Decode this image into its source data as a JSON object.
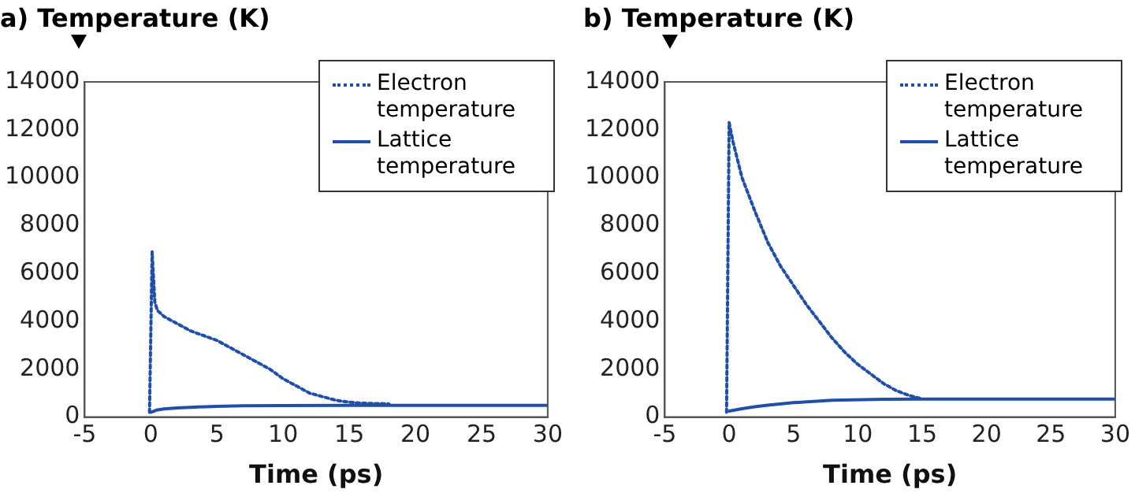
{
  "chart_data": [
    {
      "type": "line",
      "ylabel": "a) Temperature (K)",
      "xlabel": "Time (ps)",
      "xlim": [
        -5,
        30
      ],
      "xticks": [
        -5,
        0,
        5,
        10,
        15,
        20,
        25,
        30
      ],
      "ylim": [
        0,
        14000
      ],
      "yticks": [
        0,
        2000,
        4000,
        6000,
        8000,
        10000,
        12000,
        14000
      ],
      "grid": false,
      "legend": "top right",
      "marker": "none",
      "series": [
        {
          "name": "Electron temperature",
          "color": "#1f4fa8",
          "line_style": "dotted",
          "x": [
            -0.1,
            0.1,
            0.3,
            0.5,
            1,
            2,
            3,
            4,
            5,
            6,
            7,
            8,
            9,
            10,
            11,
            12,
            13,
            14,
            15,
            16,
            18
          ],
          "values": [
            200,
            6900,
            4800,
            4450,
            4200,
            3900,
            3600,
            3400,
            3200,
            2900,
            2600,
            2300,
            2000,
            1600,
            1300,
            1000,
            850,
            700,
            620,
            580,
            550
          ]
        },
        {
          "name": "Lattice temperature",
          "color": "#1f4fa8",
          "line_style": "solid",
          "x": [
            0,
            0.5,
            1,
            2,
            3,
            5,
            7,
            10,
            15,
            20,
            25,
            30
          ],
          "values": [
            200,
            300,
            340,
            380,
            410,
            450,
            470,
            480,
            490,
            490,
            490,
            490
          ]
        }
      ]
    },
    {
      "type": "line",
      "ylabel": "b) Temperature (K)",
      "xlabel": "Time (ps)",
      "xlim": [
        -5,
        30
      ],
      "xticks": [
        -5,
        0,
        5,
        10,
        15,
        20,
        25,
        30
      ],
      "ylim": [
        0,
        14000
      ],
      "yticks": [
        0,
        2000,
        4000,
        6000,
        8000,
        10000,
        12000,
        14000
      ],
      "grid": false,
      "legend": "top right",
      "marker": "none",
      "series": [
        {
          "name": "Electron temperature",
          "color": "#1f4fa8",
          "line_style": "dotted",
          "x": [
            -0.2,
            0,
            0.3,
            1,
            2,
            3,
            4,
            5,
            6,
            7,
            8,
            9,
            10,
            11,
            12,
            13,
            14,
            15
          ],
          "values": [
            200,
            12300,
            11500,
            10000,
            8600,
            7300,
            6300,
            5500,
            4700,
            4000,
            3300,
            2700,
            2200,
            1800,
            1400,
            1100,
            900,
            760
          ]
        },
        {
          "name": "Lattice temperature",
          "color": "#1f4fa8",
          "line_style": "solid",
          "x": [
            0,
            1,
            2,
            3,
            5,
            8,
            12,
            15,
            20,
            25,
            30
          ],
          "values": [
            250,
            350,
            430,
            500,
            600,
            700,
            740,
            750,
            750,
            750,
            750
          ]
        }
      ]
    }
  ]
}
